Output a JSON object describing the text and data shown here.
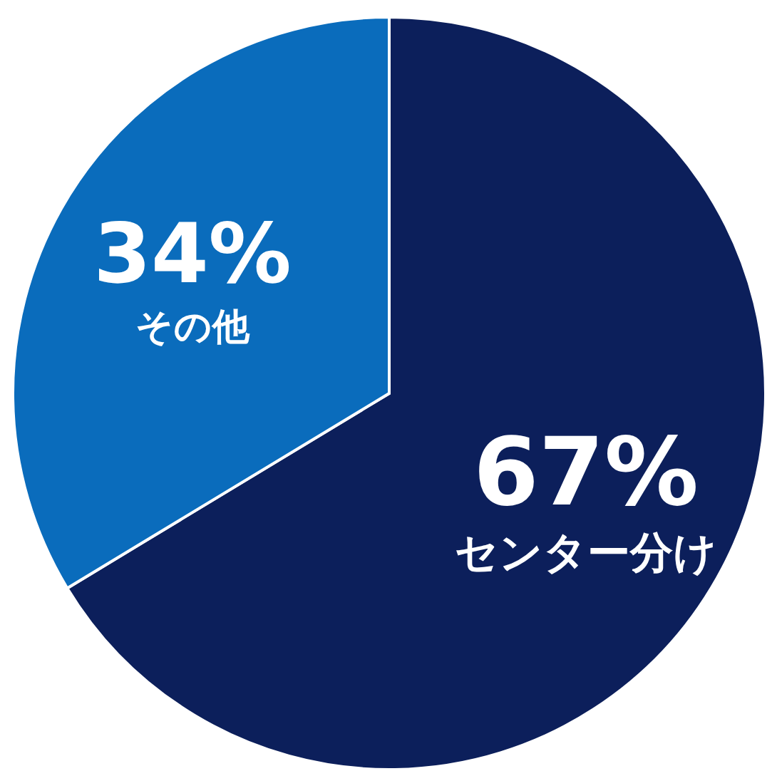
{
  "chart_data": {
    "type": "pie",
    "categories": [
      "センター分け",
      "その他"
    ],
    "values": [
      67,
      34
    ],
    "colors": [
      "#0c1f5b",
      "#0a6cbc"
    ],
    "value_labels": [
      "67%",
      "34%"
    ]
  }
}
